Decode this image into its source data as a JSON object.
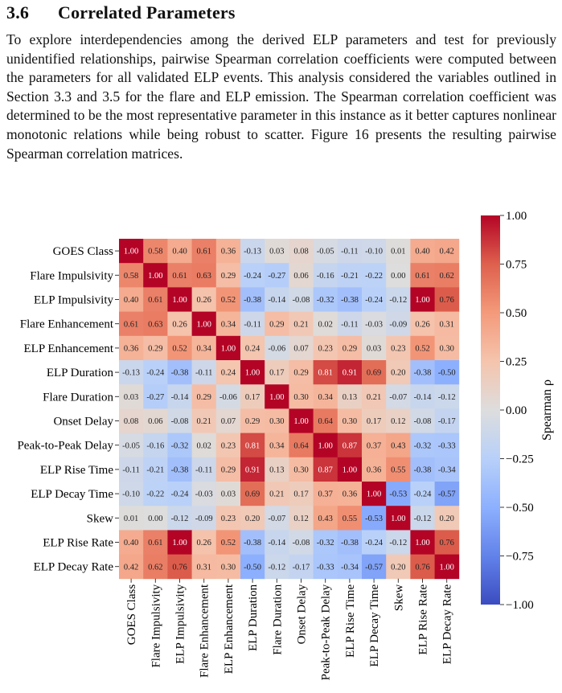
{
  "section": {
    "number": "3.6",
    "title": "Correlated Parameters",
    "paragraph": "To explore interdependencies among the derived ELP parameters and test for previously unidentified relationships, pairwise Spearman correlation coefficients were computed between the parameters for all validated ELP events. This anal­ysis considered the variables outlined in Section 3.3 and 3.5 for the flare and ELP emission. The Spearman correlation coefficient was determined to be the most representative parameter in this instance as it better captures nonlinear mono­tonic relations while being robust to scatter. Figure 16 presents the resulting pairwise Spearman correlation matrices."
  },
  "chart_data": {
    "type": "heatmap",
    "labels": [
      "GOES Class",
      "Flare Impulsivity",
      "ELP Impulsivity",
      "Flare Enhancement",
      "ELP Enhancement",
      "ELP Duration",
      "Flare Duration",
      "Onset Delay",
      "Peak-to-Peak Delay",
      "ELP Rise Time",
      "ELP Decay Time",
      "Skew",
      "ELP Rise Rate",
      "ELP Decay Rate"
    ],
    "values": [
      [
        1.0,
        0.58,
        0.4,
        0.61,
        0.36,
        -0.13,
        0.03,
        0.08,
        -0.05,
        -0.11,
        -0.1,
        0.01,
        0.4,
        0.42
      ],
      [
        0.58,
        1.0,
        0.61,
        0.63,
        0.29,
        -0.24,
        -0.27,
        0.06,
        -0.16,
        -0.21,
        -0.22,
        0.0,
        0.61,
        0.62
      ],
      [
        0.4,
        0.61,
        1.0,
        0.26,
        0.52,
        -0.38,
        -0.14,
        -0.08,
        -0.32,
        -0.38,
        -0.24,
        -0.12,
        1.0,
        0.76
      ],
      [
        0.61,
        0.63,
        0.26,
        1.0,
        0.34,
        -0.11,
        0.29,
        0.21,
        0.02,
        -0.11,
        -0.03,
        -0.09,
        0.26,
        0.31
      ],
      [
        0.36,
        0.29,
        0.52,
        0.34,
        1.0,
        0.24,
        -0.06,
        0.07,
        0.23,
        0.29,
        0.03,
        0.23,
        0.52,
        0.3
      ],
      [
        -0.13,
        -0.24,
        -0.38,
        -0.11,
        0.24,
        1.0,
        0.17,
        0.29,
        0.81,
        0.91,
        0.69,
        0.2,
        -0.38,
        -0.5
      ],
      [
        0.03,
        -0.27,
        -0.14,
        0.29,
        -0.06,
        0.17,
        1.0,
        0.3,
        0.34,
        0.13,
        0.21,
        -0.07,
        -0.14,
        -0.12
      ],
      [
        0.08,
        0.06,
        -0.08,
        0.21,
        0.07,
        0.29,
        0.3,
        1.0,
        0.64,
        0.3,
        0.17,
        0.12,
        -0.08,
        -0.17
      ],
      [
        -0.05,
        -0.16,
        -0.32,
        0.02,
        0.23,
        0.81,
        0.34,
        0.64,
        1.0,
        0.87,
        0.37,
        0.43,
        -0.32,
        -0.33
      ],
      [
        -0.11,
        -0.21,
        -0.38,
        -0.11,
        0.29,
        0.91,
        0.13,
        0.3,
        0.87,
        1.0,
        0.36,
        0.55,
        -0.38,
        -0.34
      ],
      [
        -0.1,
        -0.22,
        -0.24,
        -0.03,
        0.03,
        0.69,
        0.21,
        0.17,
        0.37,
        0.36,
        1.0,
        -0.53,
        -0.24,
        -0.57
      ],
      [
        0.01,
        0.0,
        -0.12,
        -0.09,
        0.23,
        0.2,
        -0.07,
        0.12,
        0.43,
        0.55,
        -0.53,
        1.0,
        -0.12,
        0.2
      ],
      [
        0.4,
        0.61,
        1.0,
        0.26,
        0.52,
        -0.38,
        -0.14,
        -0.08,
        -0.32,
        -0.38,
        -0.24,
        -0.12,
        1.0,
        0.76
      ],
      [
        0.42,
        0.62,
        0.76,
        0.31,
        0.3,
        -0.5,
        -0.12,
        -0.17,
        -0.33,
        -0.34,
        -0.57,
        0.2,
        0.76,
        1.0
      ]
    ],
    "value_range": [
      -1.0,
      1.0
    ],
    "colorbar": {
      "label": "Spearman ρ",
      "ticks": [
        "1.00",
        "0.75",
        "0.50",
        "0.25",
        "0.00",
        "−0.25",
        "−0.50",
        "−0.75",
        "−1.00"
      ]
    },
    "colormap": "coolwarm",
    "colors": {
      "low": "#3b4cc0",
      "mid": "#dddddd",
      "high": "#b40426"
    }
  }
}
